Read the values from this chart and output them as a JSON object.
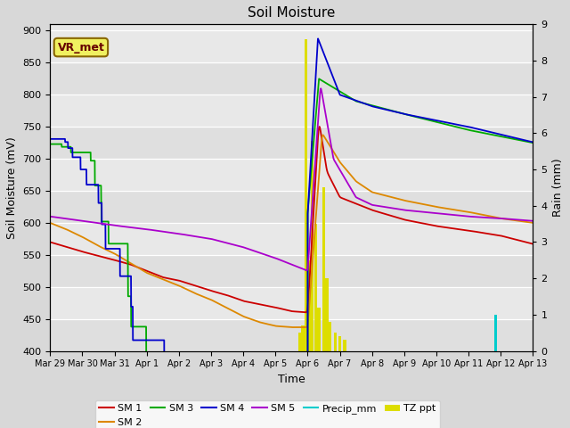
{
  "title": "Soil Moisture",
  "ylabel_left": "Soil Moisture (mV)",
  "ylabel_right": "Rain (mm)",
  "xlabel": "Time",
  "annotation": "VR_met",
  "ylim_left": [
    400,
    910
  ],
  "ylim_right": [
    0.0,
    9.0
  ],
  "yticks_left": [
    400,
    450,
    500,
    550,
    600,
    650,
    700,
    750,
    800,
    850,
    900
  ],
  "yticks_right": [
    0.0,
    1.0,
    2.0,
    3.0,
    4.0,
    5.0,
    6.0,
    7.0,
    8.0,
    9.0
  ],
  "xtick_labels": [
    "Mar 29",
    "Mar 30",
    "Mar 31",
    "Apr 1",
    "Apr 2",
    "Apr 3",
    "Apr 4",
    "Apr 5",
    "Apr 6",
    "Apr 7",
    "Apr 8",
    "Apr 9",
    "Apr 10",
    "Apr 11",
    "Apr 12",
    "Apr 13"
  ],
  "background_color": "#d8d8d8",
  "plot_bg_color": "#e8e8e8",
  "grid_color": "#ffffff",
  "colors": {
    "SM1": "#cc0000",
    "SM2": "#dd8800",
    "SM3": "#00aa00",
    "SM4": "#0000cc",
    "SM5": "#aa00cc",
    "Precip_mm": "#00cccc",
    "TZ_ppt": "#dddd00"
  },
  "legend_labels": [
    "SM 1",
    "SM 2",
    "SM 3",
    "SM 4",
    "SM 5",
    "Precip_mm",
    "TZ ppt"
  ]
}
